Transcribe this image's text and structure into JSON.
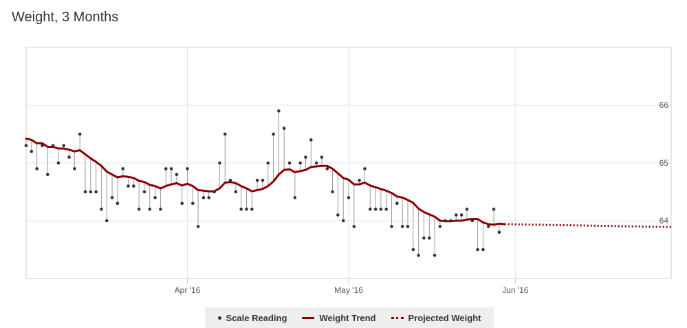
{
  "title": "Weight, 3 Months",
  "chart_data": {
    "type": "line",
    "title": "Weight, 3 Months",
    "xlabel": "",
    "ylabel": "",
    "x_range": [
      "2016-03-02",
      "2016-06-30"
    ],
    "ylim": [
      63.0,
      67.0
    ],
    "y_ticks": [
      {
        "value": 64,
        "label": "64"
      },
      {
        "value": 65,
        "label": "65"
      },
      {
        "value": 66,
        "label": "66"
      }
    ],
    "x_ticks": [
      {
        "date": "2016-04-01",
        "label": "Apr '16"
      },
      {
        "date": "2016-05-01",
        "label": "May '16"
      },
      {
        "date": "2016-06-01",
        "label": "Jun '16"
      }
    ],
    "grid": true,
    "legend_position": "bottom",
    "colors": {
      "scale": "#333333",
      "trend": "#8b0000",
      "projected": "#8b0000",
      "grid": "#e6e6e6"
    },
    "series": [
      {
        "name": "Scale Reading",
        "kind": "scatter",
        "points": [
          [
            "2016-03-02",
            65.3
          ],
          [
            "2016-03-03",
            65.2
          ],
          [
            "2016-03-04",
            64.9
          ],
          [
            "2016-03-05",
            65.3
          ],
          [
            "2016-03-06",
            64.8
          ],
          [
            "2016-03-07",
            65.3
          ],
          [
            "2016-03-08",
            65.0
          ],
          [
            "2016-03-09",
            65.3
          ],
          [
            "2016-03-10",
            65.1
          ],
          [
            "2016-03-11",
            64.9
          ],
          [
            "2016-03-12",
            65.5
          ],
          [
            "2016-03-13",
            64.5
          ],
          [
            "2016-03-14",
            64.5
          ],
          [
            "2016-03-15",
            64.5
          ],
          [
            "2016-03-16",
            64.2
          ],
          [
            "2016-03-17",
            64.0
          ],
          [
            "2016-03-18",
            64.4
          ],
          [
            "2016-03-19",
            64.3
          ],
          [
            "2016-03-20",
            64.9
          ],
          [
            "2016-03-21",
            64.6
          ],
          [
            "2016-03-22",
            64.6
          ],
          [
            "2016-03-23",
            64.2
          ],
          [
            "2016-03-24",
            64.5
          ],
          [
            "2016-03-25",
            64.2
          ],
          [
            "2016-03-26",
            64.4
          ],
          [
            "2016-03-27",
            64.2
          ],
          [
            "2016-03-28",
            64.9
          ],
          [
            "2016-03-29",
            64.9
          ],
          [
            "2016-03-30",
            64.8
          ],
          [
            "2016-03-31",
            64.3
          ],
          [
            "2016-04-01",
            64.9
          ],
          [
            "2016-04-02",
            64.3
          ],
          [
            "2016-04-03",
            63.9
          ],
          [
            "2016-04-04",
            64.4
          ],
          [
            "2016-04-05",
            64.4
          ],
          [
            "2016-04-06",
            64.5
          ],
          [
            "2016-04-07",
            65.0
          ],
          [
            "2016-04-08",
            65.5
          ],
          [
            "2016-04-09",
            64.7
          ],
          [
            "2016-04-10",
            64.5
          ],
          [
            "2016-04-11",
            64.2
          ],
          [
            "2016-04-12",
            64.2
          ],
          [
            "2016-04-13",
            64.2
          ],
          [
            "2016-04-14",
            64.7
          ],
          [
            "2016-04-15",
            64.7
          ],
          [
            "2016-04-16",
            65.0
          ],
          [
            "2016-04-17",
            65.5
          ],
          [
            "2016-04-18",
            65.9
          ],
          [
            "2016-04-19",
            65.6
          ],
          [
            "2016-04-20",
            65.0
          ],
          [
            "2016-04-21",
            64.4
          ],
          [
            "2016-04-22",
            65.0
          ],
          [
            "2016-04-23",
            65.1
          ],
          [
            "2016-04-24",
            65.4
          ],
          [
            "2016-04-25",
            65.0
          ],
          [
            "2016-04-26",
            65.1
          ],
          [
            "2016-04-27",
            64.9
          ],
          [
            "2016-04-28",
            64.5
          ],
          [
            "2016-04-29",
            64.1
          ],
          [
            "2016-04-30",
            64.0
          ],
          [
            "2016-05-01",
            64.4
          ],
          [
            "2016-05-02",
            63.9
          ],
          [
            "2016-05-03",
            64.7
          ],
          [
            "2016-05-04",
            64.9
          ],
          [
            "2016-05-05",
            64.2
          ],
          [
            "2016-05-06",
            64.2
          ],
          [
            "2016-05-07",
            64.2
          ],
          [
            "2016-05-08",
            64.2
          ],
          [
            "2016-05-09",
            63.9
          ],
          [
            "2016-05-10",
            64.3
          ],
          [
            "2016-05-11",
            63.9
          ],
          [
            "2016-05-12",
            63.9
          ],
          [
            "2016-05-13",
            63.5
          ],
          [
            "2016-05-14",
            63.4
          ],
          [
            "2016-05-15",
            63.7
          ],
          [
            "2016-05-16",
            63.7
          ],
          [
            "2016-05-17",
            63.4
          ],
          [
            "2016-05-18",
            63.9
          ],
          [
            "2016-05-19",
            64.0
          ],
          [
            "2016-05-20",
            64.0
          ],
          [
            "2016-05-21",
            64.1
          ],
          [
            "2016-05-22",
            64.1
          ],
          [
            "2016-05-23",
            64.2
          ],
          [
            "2016-05-24",
            64.0
          ],
          [
            "2016-05-25",
            63.5
          ],
          [
            "2016-05-26",
            63.5
          ],
          [
            "2016-05-27",
            63.9
          ],
          [
            "2016-05-28",
            64.2
          ],
          [
            "2016-05-29",
            63.8
          ]
        ]
      },
      {
        "name": "Weight Trend",
        "kind": "line",
        "points": [
          [
            "2016-03-02",
            65.42
          ],
          [
            "2016-03-03",
            65.4
          ],
          [
            "2016-03-04",
            65.34
          ],
          [
            "2016-03-05",
            65.34
          ],
          [
            "2016-03-06",
            65.28
          ],
          [
            "2016-03-07",
            65.28
          ],
          [
            "2016-03-08",
            65.25
          ],
          [
            "2016-03-09",
            65.25
          ],
          [
            "2016-03-10",
            65.23
          ],
          [
            "2016-03-11",
            65.2
          ],
          [
            "2016-03-12",
            65.22
          ],
          [
            "2016-03-13",
            65.15
          ],
          [
            "2016-03-14",
            65.08
          ],
          [
            "2016-03-15",
            65.02
          ],
          [
            "2016-03-16",
            64.95
          ],
          [
            "2016-03-17",
            64.85
          ],
          [
            "2016-03-18",
            64.8
          ],
          [
            "2016-03-19",
            64.75
          ],
          [
            "2016-03-20",
            64.77
          ],
          [
            "2016-03-21",
            64.76
          ],
          [
            "2016-03-22",
            64.74
          ],
          [
            "2016-03-23",
            64.69
          ],
          [
            "2016-03-24",
            64.67
          ],
          [
            "2016-03-25",
            64.62
          ],
          [
            "2016-03-26",
            64.6
          ],
          [
            "2016-03-27",
            64.56
          ],
          [
            "2016-03-28",
            64.6
          ],
          [
            "2016-03-29",
            64.63
          ],
          [
            "2016-03-30",
            64.65
          ],
          [
            "2016-03-31",
            64.61
          ],
          [
            "2016-04-01",
            64.64
          ],
          [
            "2016-04-02",
            64.6
          ],
          [
            "2016-04-03",
            64.53
          ],
          [
            "2016-04-04",
            64.52
          ],
          [
            "2016-04-05",
            64.51
          ],
          [
            "2016-04-06",
            64.51
          ],
          [
            "2016-04-07",
            64.56
          ],
          [
            "2016-04-08",
            64.66
          ],
          [
            "2016-04-09",
            64.67
          ],
          [
            "2016-04-10",
            64.65
          ],
          [
            "2016-04-11",
            64.6
          ],
          [
            "2016-04-12",
            64.56
          ],
          [
            "2016-04-13",
            64.51
          ],
          [
            "2016-04-14",
            64.53
          ],
          [
            "2016-04-15",
            64.55
          ],
          [
            "2016-04-16",
            64.6
          ],
          [
            "2016-04-17",
            64.68
          ],
          [
            "2016-04-18",
            64.8
          ],
          [
            "2016-04-19",
            64.88
          ],
          [
            "2016-04-20",
            64.89
          ],
          [
            "2016-04-21",
            64.84
          ],
          [
            "2016-04-22",
            64.86
          ],
          [
            "2016-04-23",
            64.88
          ],
          [
            "2016-04-24",
            64.93
          ],
          [
            "2016-04-25",
            64.94
          ],
          [
            "2016-04-26",
            64.95
          ],
          [
            "2016-04-27",
            64.95
          ],
          [
            "2016-04-28",
            64.9
          ],
          [
            "2016-04-29",
            64.82
          ],
          [
            "2016-04-30",
            64.74
          ],
          [
            "2016-05-01",
            64.71
          ],
          [
            "2016-05-02",
            64.63
          ],
          [
            "2016-05-03",
            64.63
          ],
          [
            "2016-05-04",
            64.66
          ],
          [
            "2016-05-05",
            64.61
          ],
          [
            "2016-05-06",
            64.58
          ],
          [
            "2016-05-07",
            64.55
          ],
          [
            "2016-05-08",
            64.52
          ],
          [
            "2016-05-09",
            64.48
          ],
          [
            "2016-05-10",
            64.42
          ],
          [
            "2016-05-11",
            64.4
          ],
          [
            "2016-05-12",
            64.36
          ],
          [
            "2016-05-13",
            64.31
          ],
          [
            "2016-05-14",
            64.21
          ],
          [
            "2016-05-15",
            64.15
          ],
          [
            "2016-05-16",
            64.11
          ],
          [
            "2016-05-17",
            64.07
          ],
          [
            "2016-05-18",
            64.0
          ],
          [
            "2016-05-19",
            63.99
          ],
          [
            "2016-05-20",
            63.99
          ],
          [
            "2016-05-21",
            64.0
          ],
          [
            "2016-05-22",
            64.0
          ],
          [
            "2016-05-23",
            64.02
          ],
          [
            "2016-05-24",
            64.03
          ],
          [
            "2016-05-25",
            64.03
          ],
          [
            "2016-05-26",
            63.97
          ],
          [
            "2016-05-27",
            63.94
          ],
          [
            "2016-05-28",
            63.93
          ],
          [
            "2016-05-29",
            63.95
          ],
          [
            "2016-05-30",
            63.94
          ]
        ]
      },
      {
        "name": "Projected Weight",
        "kind": "dotted-line",
        "points": [
          [
            "2016-05-30",
            63.94
          ],
          [
            "2016-06-30",
            63.89
          ]
        ]
      }
    ]
  }
}
